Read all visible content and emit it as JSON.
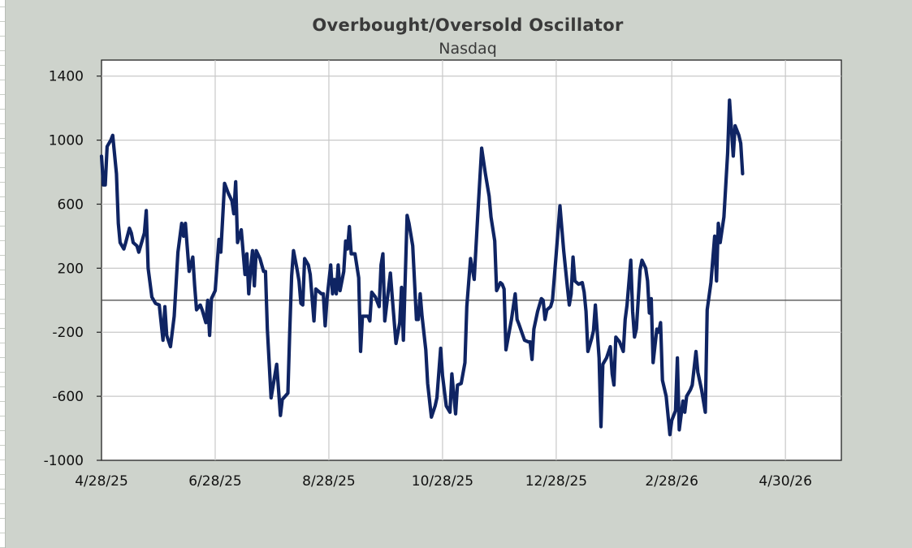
{
  "chart_data": {
    "type": "line",
    "title": "Overbought/Oversold Oscillator",
    "subtitle": "Nasdaq",
    "xlabel": "",
    "ylabel": "",
    "ylim": [
      -1000,
      1500
    ],
    "yticks": [
      1400,
      1000,
      600,
      200,
      -200,
      -600,
      -1000
    ],
    "ytick_labels": [
      "1400",
      "1000",
      "600",
      "200",
      "-200",
      "-600",
      "-1000"
    ],
    "xlim": [
      "2025-04-28",
      "2026-05-30"
    ],
    "xticks": [
      "2025-04-28",
      "2025-06-28",
      "2025-08-28",
      "2025-10-28",
      "2025-12-28",
      "2026-02-28",
      "2026-04-30"
    ],
    "xtick_labels": [
      "4/28/25",
      "6/28/25",
      "8/28/25",
      "10/28/25",
      "12/28/25",
      "2/28/26",
      "4/30/26"
    ],
    "grid": true,
    "reference_line": 0,
    "colors": {
      "line": "#0f2463",
      "zero_line": "#555555",
      "grid": "#c8c8c8",
      "plot_bg": "#ffffff",
      "page_bg": "#ced3cc"
    },
    "series": [
      {
        "points": [
          [
            "2025-04-28",
            900
          ],
          [
            "2025-04-29",
            720
          ],
          [
            "2025-04-30",
            720
          ],
          [
            "2025-05-01",
            960
          ],
          [
            "2025-05-03",
            1000
          ],
          [
            "2025-05-04",
            1030
          ],
          [
            "2025-05-06",
            790
          ],
          [
            "2025-05-07",
            480
          ],
          [
            "2025-05-08",
            360
          ],
          [
            "2025-05-10",
            320
          ],
          [
            "2025-05-11",
            360
          ],
          [
            "2025-05-13",
            450
          ],
          [
            "2025-05-14",
            420
          ],
          [
            "2025-05-15",
            360
          ],
          [
            "2025-05-17",
            340
          ],
          [
            "2025-05-18",
            300
          ],
          [
            "2025-05-21",
            420
          ],
          [
            "2025-05-22",
            560
          ],
          [
            "2025-05-23",
            200
          ],
          [
            "2025-05-25",
            20
          ],
          [
            "2025-05-27",
            -20
          ],
          [
            "2025-05-29",
            -30
          ],
          [
            "2025-05-31",
            -250
          ],
          [
            "2025-06-01",
            -40
          ],
          [
            "2025-06-02",
            -220
          ],
          [
            "2025-06-04",
            -290
          ],
          [
            "2025-06-06",
            -100
          ],
          [
            "2025-06-08",
            300
          ],
          [
            "2025-06-10",
            480
          ],
          [
            "2025-06-11",
            400
          ],
          [
            "2025-06-12",
            480
          ],
          [
            "2025-06-14",
            180
          ],
          [
            "2025-06-16",
            270
          ],
          [
            "2025-06-17",
            90
          ],
          [
            "2025-06-18",
            -60
          ],
          [
            "2025-06-20",
            -30
          ],
          [
            "2025-06-21",
            -60
          ],
          [
            "2025-06-23",
            -140
          ],
          [
            "2025-06-24",
            0
          ],
          [
            "2025-06-25",
            -220
          ],
          [
            "2025-06-26",
            10
          ],
          [
            "2025-06-28",
            60
          ],
          [
            "2025-06-30",
            380
          ],
          [
            "2025-07-01",
            300
          ],
          [
            "2025-07-03",
            730
          ],
          [
            "2025-07-05",
            670
          ],
          [
            "2025-07-07",
            620
          ],
          [
            "2025-07-08",
            540
          ],
          [
            "2025-07-09",
            740
          ],
          [
            "2025-07-10",
            360
          ],
          [
            "2025-07-12",
            440
          ],
          [
            "2025-07-14",
            160
          ],
          [
            "2025-07-15",
            290
          ],
          [
            "2025-07-16",
            40
          ],
          [
            "2025-07-17",
            190
          ],
          [
            "2025-07-18",
            310
          ],
          [
            "2025-07-19",
            90
          ],
          [
            "2025-07-20",
            310
          ],
          [
            "2025-07-22",
            260
          ],
          [
            "2025-07-24",
            180
          ],
          [
            "2025-07-25",
            180
          ],
          [
            "2025-07-26",
            -180
          ],
          [
            "2025-07-28",
            -610
          ],
          [
            "2025-07-31",
            -400
          ],
          [
            "2025-08-02",
            -720
          ],
          [
            "2025-08-03",
            -620
          ],
          [
            "2025-08-06",
            -580
          ],
          [
            "2025-08-07",
            -190
          ],
          [
            "2025-08-08",
            150
          ],
          [
            "2025-08-09",
            310
          ],
          [
            "2025-08-11",
            190
          ],
          [
            "2025-08-12",
            120
          ],
          [
            "2025-08-13",
            -20
          ],
          [
            "2025-08-14",
            -30
          ],
          [
            "2025-08-15",
            260
          ],
          [
            "2025-08-17",
            220
          ],
          [
            "2025-08-18",
            160
          ],
          [
            "2025-08-20",
            -130
          ],
          [
            "2025-08-21",
            70
          ],
          [
            "2025-08-22",
            60
          ],
          [
            "2025-08-24",
            40
          ],
          [
            "2025-08-25",
            40
          ],
          [
            "2025-08-26",
            -160
          ],
          [
            "2025-08-27",
            10
          ],
          [
            "2025-08-29",
            220
          ],
          [
            "2025-08-30",
            40
          ],
          [
            "2025-08-31",
            130
          ],
          [
            "2025-09-01",
            40
          ],
          [
            "2025-09-02",
            220
          ],
          [
            "2025-09-03",
            60
          ],
          [
            "2025-09-05",
            180
          ],
          [
            "2025-09-06",
            370
          ],
          [
            "2025-09-07",
            320
          ],
          [
            "2025-09-08",
            460
          ],
          [
            "2025-09-09",
            290
          ],
          [
            "2025-09-11",
            290
          ],
          [
            "2025-09-13",
            140
          ],
          [
            "2025-09-14",
            -320
          ],
          [
            "2025-09-15",
            -100
          ],
          [
            "2025-09-18",
            -100
          ],
          [
            "2025-09-19",
            -130
          ],
          [
            "2025-09-20",
            50
          ],
          [
            "2025-09-22",
            20
          ],
          [
            "2025-09-24",
            -40
          ],
          [
            "2025-09-25",
            220
          ],
          [
            "2025-09-26",
            290
          ],
          [
            "2025-09-27",
            -130
          ],
          [
            "2025-09-30",
            170
          ],
          [
            "2025-10-01",
            20
          ],
          [
            "2025-10-03",
            -270
          ],
          [
            "2025-10-05",
            -140
          ],
          [
            "2025-10-06",
            80
          ],
          [
            "2025-10-07",
            -250
          ],
          [
            "2025-10-09",
            530
          ],
          [
            "2025-10-10",
            480
          ],
          [
            "2025-10-12",
            340
          ],
          [
            "2025-10-14",
            -120
          ],
          [
            "2025-10-15",
            -120
          ],
          [
            "2025-10-16",
            40
          ],
          [
            "2025-10-17",
            -100
          ],
          [
            "2025-10-19",
            -310
          ],
          [
            "2025-10-20",
            -520
          ],
          [
            "2025-10-22",
            -730
          ],
          [
            "2025-10-24",
            -660
          ],
          [
            "2025-10-25",
            -610
          ],
          [
            "2025-10-27",
            -300
          ],
          [
            "2025-10-28",
            -470
          ],
          [
            "2025-10-30",
            -660
          ],
          [
            "2025-11-01",
            -700
          ],
          [
            "2025-11-02",
            -460
          ],
          [
            "2025-11-04",
            -710
          ],
          [
            "2025-11-05",
            -530
          ],
          [
            "2025-11-07",
            -520
          ],
          [
            "2025-11-09",
            -390
          ],
          [
            "2025-11-10",
            -40
          ],
          [
            "2025-11-12",
            260
          ],
          [
            "2025-11-13",
            200
          ],
          [
            "2025-11-14",
            130
          ],
          [
            "2025-11-16",
            550
          ],
          [
            "2025-11-18",
            950
          ],
          [
            "2025-11-20",
            790
          ],
          [
            "2025-11-22",
            650
          ],
          [
            "2025-11-23",
            520
          ],
          [
            "2025-11-25",
            370
          ],
          [
            "2025-11-26",
            60
          ],
          [
            "2025-11-28",
            110
          ],
          [
            "2025-11-29",
            100
          ],
          [
            "2025-11-30",
            70
          ],
          [
            "2025-12-01",
            -310
          ],
          [
            "2025-12-04",
            -120
          ],
          [
            "2025-12-05",
            -40
          ],
          [
            "2025-12-06",
            40
          ],
          [
            "2025-12-07",
            -120
          ],
          [
            "2025-12-08",
            -150
          ],
          [
            "2025-12-11",
            -250
          ],
          [
            "2025-12-13",
            -260
          ],
          [
            "2025-12-14",
            -260
          ],
          [
            "2025-12-15",
            -370
          ],
          [
            "2025-12-16",
            -180
          ],
          [
            "2025-12-18",
            -70
          ],
          [
            "2025-12-20",
            10
          ],
          [
            "2025-12-21",
            0
          ],
          [
            "2025-12-22",
            -120
          ],
          [
            "2025-12-23",
            -60
          ],
          [
            "2025-12-25",
            -40
          ],
          [
            "2025-12-26",
            0
          ],
          [
            "2025-12-28",
            290
          ],
          [
            "2025-12-30",
            590
          ],
          [
            "2026-01-01",
            310
          ],
          [
            "2026-01-03",
            80
          ],
          [
            "2026-01-04",
            -30
          ],
          [
            "2026-01-05",
            40
          ],
          [
            "2026-01-06",
            270
          ],
          [
            "2026-01-07",
            120
          ],
          [
            "2026-01-09",
            100
          ],
          [
            "2026-01-11",
            110
          ],
          [
            "2026-01-12",
            50
          ],
          [
            "2026-01-13",
            -70
          ],
          [
            "2026-01-14",
            -320
          ],
          [
            "2026-01-16",
            -240
          ],
          [
            "2026-01-17",
            -190
          ],
          [
            "2026-01-18",
            -30
          ],
          [
            "2026-01-20",
            -360
          ],
          [
            "2026-01-21",
            -790
          ],
          [
            "2026-01-22",
            -400
          ],
          [
            "2026-01-24",
            -360
          ],
          [
            "2026-01-26",
            -290
          ],
          [
            "2026-01-27",
            -460
          ],
          [
            "2026-01-28",
            -530
          ],
          [
            "2026-01-29",
            -230
          ],
          [
            "2026-01-31",
            -260
          ],
          [
            "2026-02-02",
            -320
          ],
          [
            "2026-02-03",
            -120
          ],
          [
            "2026-02-04",
            -30
          ],
          [
            "2026-02-06",
            250
          ],
          [
            "2026-02-07",
            -70
          ],
          [
            "2026-02-08",
            -230
          ],
          [
            "2026-02-09",
            -180
          ],
          [
            "2026-02-11",
            190
          ],
          [
            "2026-02-12",
            250
          ],
          [
            "2026-02-14",
            200
          ],
          [
            "2026-02-15",
            120
          ],
          [
            "2026-02-16",
            -80
          ],
          [
            "2026-02-17",
            10
          ],
          [
            "2026-02-18",
            -390
          ],
          [
            "2026-02-20",
            -180
          ],
          [
            "2026-02-21",
            -200
          ],
          [
            "2026-02-22",
            -140
          ],
          [
            "2026-02-23",
            -500
          ],
          [
            "2026-02-25",
            -600
          ],
          [
            "2026-02-27",
            -840
          ],
          [
            "2026-02-28",
            -750
          ],
          [
            "2026-03-02",
            -690
          ],
          [
            "2026-03-03",
            -360
          ],
          [
            "2026-03-04",
            -810
          ],
          [
            "2026-03-06",
            -630
          ],
          [
            "2026-03-07",
            -700
          ],
          [
            "2026-03-08",
            -600
          ],
          [
            "2026-03-10",
            -560
          ],
          [
            "2026-03-11",
            -530
          ],
          [
            "2026-03-13",
            -320
          ],
          [
            "2026-03-14",
            -450
          ],
          [
            "2026-03-16",
            -560
          ],
          [
            "2026-03-18",
            -700
          ],
          [
            "2026-03-19",
            -60
          ],
          [
            "2026-03-21",
            110
          ],
          [
            "2026-03-23",
            400
          ],
          [
            "2026-03-24",
            120
          ],
          [
            "2026-03-25",
            480
          ],
          [
            "2026-03-26",
            360
          ],
          [
            "2026-03-28",
            520
          ],
          [
            "2026-03-30",
            920
          ],
          [
            "2026-03-31",
            1250
          ],
          [
            "2026-04-02",
            900
          ],
          [
            "2026-04-03",
            1090
          ],
          [
            "2026-04-05",
            1030
          ],
          [
            "2026-04-06",
            980
          ],
          [
            "2026-04-07",
            790
          ]
        ]
      }
    ]
  }
}
